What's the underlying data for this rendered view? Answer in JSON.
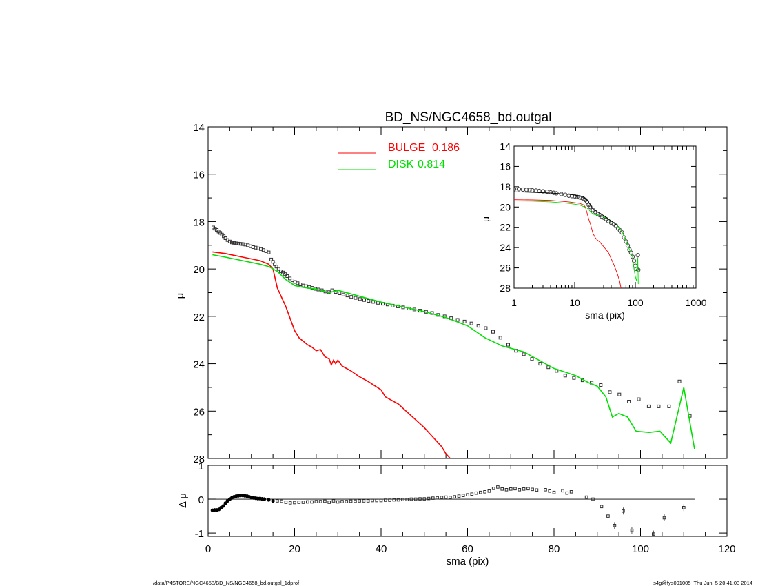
{
  "footer": {
    "path": "/data/P4STORE/NGC4658/BD_NS/NGC4658_bd.outgal_1dprof",
    "stamp": "s4g@fys091005  Thu Jun  5 20:41:03 2014"
  },
  "colors": {
    "bulge": "#ff0000",
    "disk": "#00e000",
    "data": "#000000",
    "bg": "#ffffff"
  },
  "chart_data": [
    {
      "type": "scatter",
      "id": "main",
      "title": "BD_NS/NGC4658_bd.outgal",
      "ylabel": "μ",
      "xlim": [
        0,
        120
      ],
      "ylim": [
        28,
        14
      ],
      "yticks": [
        14,
        16,
        18,
        20,
        22,
        24,
        26,
        28
      ],
      "legend_placement": "top-center",
      "legend": [
        {
          "name": "BULGE",
          "value": "0.186",
          "color": "#ff0000"
        },
        {
          "name": "DISK",
          "value": "0.814",
          "color": "#00e000"
        }
      ],
      "series": [
        {
          "name": "data",
          "kind": "points",
          "x": [
            1.2,
            1.6,
            2.0,
            2.4,
            2.8,
            3.2,
            3.6,
            4.0,
            4.5,
            5.0,
            5.5,
            6.0,
            6.5,
            7.0,
            7.5,
            8.0,
            8.6,
            9.2,
            9.8,
            10.4,
            11.0,
            11.6,
            12.2,
            12.8,
            13.4,
            14.0,
            14.6,
            15.0,
            15.4,
            15.8,
            16.3,
            16.8,
            17.3,
            17.8,
            18.3,
            18.9,
            19.5,
            20.1,
            20.7,
            21.3,
            22.0,
            22.7,
            23.4,
            24.1,
            24.8,
            25.5,
            26.3,
            27.1,
            27.9,
            28.7,
            29.5,
            30.4,
            31.3,
            32.2,
            33.1,
            34.1,
            35.1,
            36.1,
            37.1,
            38.2,
            39.3,
            40.4,
            41.5,
            42.7,
            43.9,
            45.1,
            46.4,
            47.7,
            49.0,
            50.4,
            51.8,
            53.2,
            54.7,
            56.2,
            57.7,
            59.3,
            60.9,
            62.5,
            64.2,
            65.9,
            67.6,
            69.4,
            71.2,
            73.0,
            74.9,
            76.8,
            78.7,
            80.6,
            82.6,
            84.6,
            86.6,
            88.7,
            90.8,
            92.9,
            95.1,
            97.3,
            99.6,
            101.9,
            104.2,
            106.6,
            109.0,
            111.4
          ],
          "y": [
            18.25,
            18.3,
            18.35,
            18.42,
            18.48,
            18.55,
            18.62,
            18.7,
            18.78,
            18.84,
            18.88,
            18.9,
            18.92,
            18.93,
            18.94,
            18.95,
            18.97,
            19.0,
            19.04,
            19.08,
            19.1,
            19.13,
            19.16,
            19.2,
            19.25,
            19.3,
            19.6,
            19.7,
            19.8,
            19.9,
            20.0,
            20.1,
            20.15,
            20.22,
            20.3,
            20.4,
            20.48,
            20.55,
            20.6,
            20.65,
            20.7,
            20.73,
            20.76,
            20.8,
            20.84,
            20.87,
            20.9,
            20.95,
            20.98,
            20.9,
            20.97,
            21.03,
            21.08,
            21.12,
            21.18,
            21.22,
            21.27,
            21.31,
            21.35,
            21.39,
            21.43,
            21.47,
            21.5,
            21.55,
            21.58,
            21.62,
            21.67,
            21.71,
            21.76,
            21.81,
            21.86,
            21.94,
            22.0,
            22.08,
            22.15,
            22.22,
            22.3,
            22.4,
            22.5,
            22.65,
            22.9,
            23.2,
            23.45,
            23.6,
            23.8,
            24.0,
            24.15,
            24.3,
            24.5,
            24.6,
            24.7,
            24.8,
            24.9,
            25.2,
            25.3,
            25.6,
            25.5,
            25.8,
            25.8,
            25.8,
            24.75,
            26.2
          ]
        },
        {
          "name": "bulge",
          "kind": "line",
          "color": "#ff0000",
          "x": [
            1,
            4,
            8,
            12,
            14,
            15,
            15.5,
            16,
            17,
            18,
            19,
            20,
            21,
            22,
            23,
            24,
            25,
            26,
            27,
            28,
            28.5,
            29,
            29.5,
            30,
            31,
            33,
            35,
            37,
            40,
            41,
            44,
            47,
            50,
            52,
            54,
            55,
            56
          ],
          "y": [
            19.28,
            19.35,
            19.5,
            19.65,
            19.8,
            20.0,
            20.4,
            20.8,
            21.2,
            21.6,
            22.1,
            22.6,
            22.9,
            23.05,
            23.2,
            23.3,
            23.45,
            23.4,
            23.7,
            23.8,
            24.05,
            23.85,
            24.0,
            23.85,
            24.1,
            24.3,
            24.55,
            24.75,
            25.1,
            25.4,
            25.7,
            26.2,
            26.7,
            27.1,
            27.5,
            27.8,
            28.0
          ]
        },
        {
          "name": "disk",
          "kind": "line",
          "color": "#00e000",
          "x": [
            1,
            4,
            8,
            12,
            14,
            16,
            18,
            20,
            22,
            25,
            28,
            30,
            35,
            40,
            45,
            50,
            55,
            60,
            64,
            68,
            70,
            73,
            76,
            80,
            85,
            88,
            90,
            92,
            93.5,
            95,
            97,
            99,
            102,
            104.5,
            107,
            110,
            112.5
          ],
          "y": [
            19.4,
            19.5,
            19.65,
            19.8,
            19.9,
            20.1,
            20.45,
            20.7,
            20.78,
            20.85,
            21.0,
            20.9,
            21.15,
            21.4,
            21.6,
            21.8,
            22.05,
            22.4,
            22.9,
            23.25,
            23.35,
            23.5,
            23.8,
            24.2,
            24.5,
            24.8,
            24.95,
            25.4,
            26.25,
            26.1,
            26.25,
            26.85,
            26.9,
            26.85,
            27.35,
            25.0,
            27.6
          ]
        }
      ]
    },
    {
      "type": "scatter",
      "id": "residual",
      "ylabel": "Δ μ",
      "xlabel": "sma (pix)",
      "xlim": [
        0,
        120
      ],
      "ylim": [
        -1.1,
        1.0
      ],
      "xticks": [
        0,
        20,
        40,
        60,
        80,
        100,
        120
      ],
      "yticks": [
        -1,
        0,
        1
      ],
      "zero_line": true,
      "series": [
        {
          "name": "residual",
          "kind": "points",
          "x": [
            1.0,
            1.5,
            2.0,
            2.5,
            3.0,
            3.5,
            4.0,
            4.5,
            5.0,
            5.5,
            6.0,
            6.5,
            7.0,
            7.5,
            8.0,
            8.5,
            9.0,
            9.5,
            10.0,
            10.5,
            11.0,
            11.5,
            12.0,
            12.5,
            13.0,
            14.0,
            15.0,
            16.0,
            17.0,
            18.0,
            19.0,
            20.0,
            21.0,
            22.0,
            23.0,
            24.0,
            25.0,
            26.0,
            27.0,
            28.0,
            29.0,
            30.0,
            31.0,
            32.0,
            33.0,
            34.0,
            35.0,
            36.0,
            37.0,
            38.0,
            39.0,
            40.0,
            41.0,
            42.0,
            43.0,
            44.0,
            45.0,
            46.0,
            47.0,
            48.0,
            49.0,
            50.0,
            51.0,
            52.0,
            53.0,
            54.0,
            55.0,
            56.0,
            57.0,
            58.0,
            59.0,
            60.0,
            61.0,
            62.0,
            63.0,
            64.0,
            65.0,
            66.0,
            67.0,
            68.0,
            69.0,
            70.0,
            71.0,
            72.0,
            73.0,
            74.0,
            75.0,
            76.0,
            78.0,
            79.0,
            80.0,
            82.0,
            83.0,
            84.0,
            87.5,
            89.0,
            91.0,
            92.5,
            94.0,
            96.0,
            98.0,
            103.0,
            105.5,
            110.0
          ],
          "y": [
            -0.33,
            -0.32,
            -0.32,
            -0.3,
            -0.25,
            -0.2,
            -0.12,
            -0.05,
            0.0,
            0.04,
            0.07,
            0.09,
            0.1,
            0.11,
            0.11,
            0.1,
            0.09,
            0.07,
            0.05,
            0.04,
            0.03,
            0.02,
            0.02,
            0.01,
            0.0,
            -0.02,
            -0.05,
            -0.05,
            -0.06,
            -0.09,
            -0.11,
            -0.1,
            -0.09,
            -0.09,
            -0.08,
            -0.08,
            -0.07,
            -0.07,
            -0.06,
            -0.09,
            -0.05,
            -0.08,
            -0.07,
            -0.07,
            -0.06,
            -0.06,
            -0.05,
            -0.05,
            -0.05,
            -0.04,
            -0.04,
            -0.04,
            -0.03,
            -0.03,
            -0.02,
            -0.02,
            -0.01,
            -0.01,
            0.0,
            0.0,
            0.01,
            0.01,
            0.02,
            0.03,
            0.04,
            0.05,
            0.06,
            0.05,
            0.07,
            0.09,
            0.11,
            0.13,
            0.15,
            0.18,
            0.2,
            0.22,
            0.24,
            0.32,
            0.36,
            0.3,
            0.28,
            0.3,
            0.31,
            0.28,
            0.3,
            0.31,
            0.29,
            0.27,
            0.28,
            0.24,
            0.2,
            0.25,
            0.18,
            0.22,
            0.06,
            0.0,
            -0.22,
            -0.5,
            -0.78,
            -0.35,
            -0.92,
            -1.03,
            -0.55,
            -0.25
          ]
        }
      ]
    },
    {
      "type": "scatter",
      "id": "inset",
      "xlabel": "sma (pix)",
      "ylabel": "μ",
      "xscale": "log",
      "xlim": [
        1,
        1000
      ],
      "ylim": [
        28,
        14
      ],
      "xticks": [
        1,
        10,
        100,
        1000
      ],
      "yticks": [
        14,
        16,
        18,
        20,
        22,
        24,
        26,
        28
      ],
      "series": [
        {
          "name": "data",
          "kind": "points",
          "x": [
            1.0,
            1.2,
            1.4,
            1.6,
            1.8,
            2.0,
            2.3,
            2.6,
            3.0,
            3.5,
            4.0,
            4.5,
            5.0,
            6.0,
            7.0,
            8.0,
            9.0,
            10.0,
            11.0,
            12.0,
            13.0,
            14.0,
            15.0,
            16.0,
            17.0,
            18.0,
            20.0,
            22.0,
            24.0,
            26.0,
            28.0,
            30.0,
            33.0,
            36.0,
            40.0,
            44.0,
            48.0,
            52.0,
            56.0,
            60.0,
            65.0,
            70.0,
            75.0,
            80.0,
            85.0,
            90.0,
            95.0,
            100.0,
            105.0,
            110.0,
            112.0
          ],
          "y": [
            18.25,
            18.25,
            18.28,
            18.3,
            18.32,
            18.35,
            18.38,
            18.42,
            18.45,
            18.5,
            18.55,
            18.6,
            18.65,
            18.72,
            18.8,
            18.88,
            18.92,
            18.95,
            19.0,
            19.05,
            19.1,
            19.2,
            19.3,
            19.5,
            19.8,
            20.0,
            20.3,
            20.5,
            20.7,
            20.8,
            20.95,
            21.05,
            21.2,
            21.4,
            21.55,
            21.7,
            21.85,
            22.1,
            22.3,
            22.5,
            23.0,
            23.4,
            23.8,
            24.2,
            24.5,
            24.9,
            25.3,
            25.8,
            26.1,
            24.75,
            26.2
          ]
        },
        {
          "name": "bulge",
          "kind": "line",
          "color": "#ff0000",
          "x": [
            1,
            2,
            4,
            8,
            12,
            14,
            15,
            16,
            17,
            18,
            20,
            22,
            24,
            26,
            28,
            30,
            33,
            36,
            40,
            45,
            50,
            55,
            58
          ],
          "y": [
            19.28,
            19.3,
            19.35,
            19.5,
            19.65,
            19.8,
            20.0,
            20.6,
            21.2,
            21.6,
            22.6,
            23.05,
            23.3,
            23.45,
            23.7,
            23.9,
            24.2,
            24.5,
            25.1,
            25.8,
            26.5,
            27.3,
            28.0
          ]
        },
        {
          "name": "disk",
          "kind": "line",
          "color": "#00e000",
          "x": [
            1,
            2,
            4,
            8,
            12,
            16,
            20,
            25,
            30,
            40,
            50,
            60,
            70,
            80,
            90,
            95,
            100,
            105,
            110,
            112
          ],
          "y": [
            19.4,
            19.42,
            19.5,
            19.65,
            19.8,
            20.1,
            20.7,
            20.85,
            20.95,
            21.4,
            21.8,
            22.4,
            23.35,
            24.2,
            24.95,
            26.1,
            26.85,
            27.3,
            25.0,
            27.6
          ]
        },
        {
          "name": "model",
          "kind": "line",
          "color": "#000000",
          "x": [
            1,
            2,
            4,
            8,
            12,
            14,
            16,
            20,
            30,
            50
          ],
          "y": [
            18.5,
            18.55,
            18.62,
            18.75,
            18.9,
            19.0,
            19.3,
            20.2,
            20.85,
            21.8
          ]
        }
      ]
    }
  ]
}
